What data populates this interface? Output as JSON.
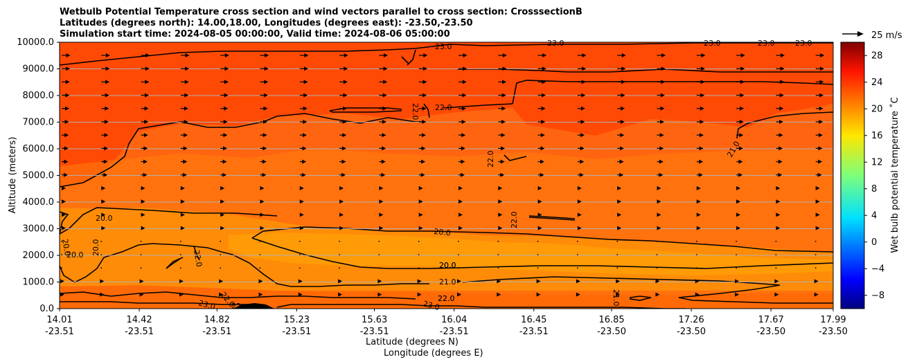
{
  "chart_data": {
    "type": "heatmap",
    "title_lines": [
      "Wetbulb Potential Temperature cross section and wind vectors parallel to cross section: CrosssectionB",
      "Latitudes (degrees north): 14.00,18.00, Longitudes (degrees east): -23.50,-23.50",
      "Simulation start time: 2024-08-05 00:00:00, Valid time: 2024-08-06 05:00:00"
    ],
    "ylabel": "Altitude (meters)",
    "xlabel": "Latitude (degrees N)",
    "xlabel2": "Longitude (degrees E)",
    "ylim": [
      0,
      10000
    ],
    "yticks": [
      "0.0",
      "1000.0",
      "2000.0",
      "3000.0",
      "4000.0",
      "5000.0",
      "6000.0",
      "7000.0",
      "8000.0",
      "9000.0",
      "10000.0"
    ],
    "x_range": [
      14.01,
      17.99
    ],
    "xticks": [
      {
        "lat": "14.01",
        "lon": "-23.51"
      },
      {
        "lat": "14.42",
        "lon": "-23.51"
      },
      {
        "lat": "14.82",
        "lon": "-23.51"
      },
      {
        "lat": "15.23",
        "lon": "-23.51"
      },
      {
        "lat": "15.63",
        "lon": "-23.51"
      },
      {
        "lat": "16.04",
        "lon": "-23.51"
      },
      {
        "lat": "16.45",
        "lon": "-23.51"
      },
      {
        "lat": "16.85",
        "lon": "-23.50"
      },
      {
        "lat": "17.26",
        "lon": "-23.50"
      },
      {
        "lat": "17.67",
        "lon": "-23.50"
      },
      {
        "lat": "17.99",
        "lon": "-23.50"
      }
    ],
    "grid": "horizontal",
    "colorbar": {
      "label": "Wet bulb potential temperature ˚C",
      "range": [
        -10,
        30
      ],
      "ticks": [
        "28",
        "24",
        "20",
        "16",
        "12",
        "8",
        "4",
        "0",
        "−4",
        "−8"
      ],
      "colormap": "jet"
    },
    "vector_key": {
      "label": "25 m/s"
    },
    "contour_labels": [
      "23.0",
      "23.0",
      "23.0",
      "23.0",
      "23.0",
      "22.0",
      "22.0",
      "22.0",
      "22.0",
      "21.0",
      "20.0",
      "20.0",
      "20.0",
      "20.0",
      "20.0",
      "20.0",
      "22.0",
      "22.0",
      "23.0",
      "22",
      "22.0",
      "20.0",
      "21.0",
      "22.0",
      "23.0",
      "21.0"
    ],
    "wind_direction": "northward (parallel to cross section)"
  }
}
